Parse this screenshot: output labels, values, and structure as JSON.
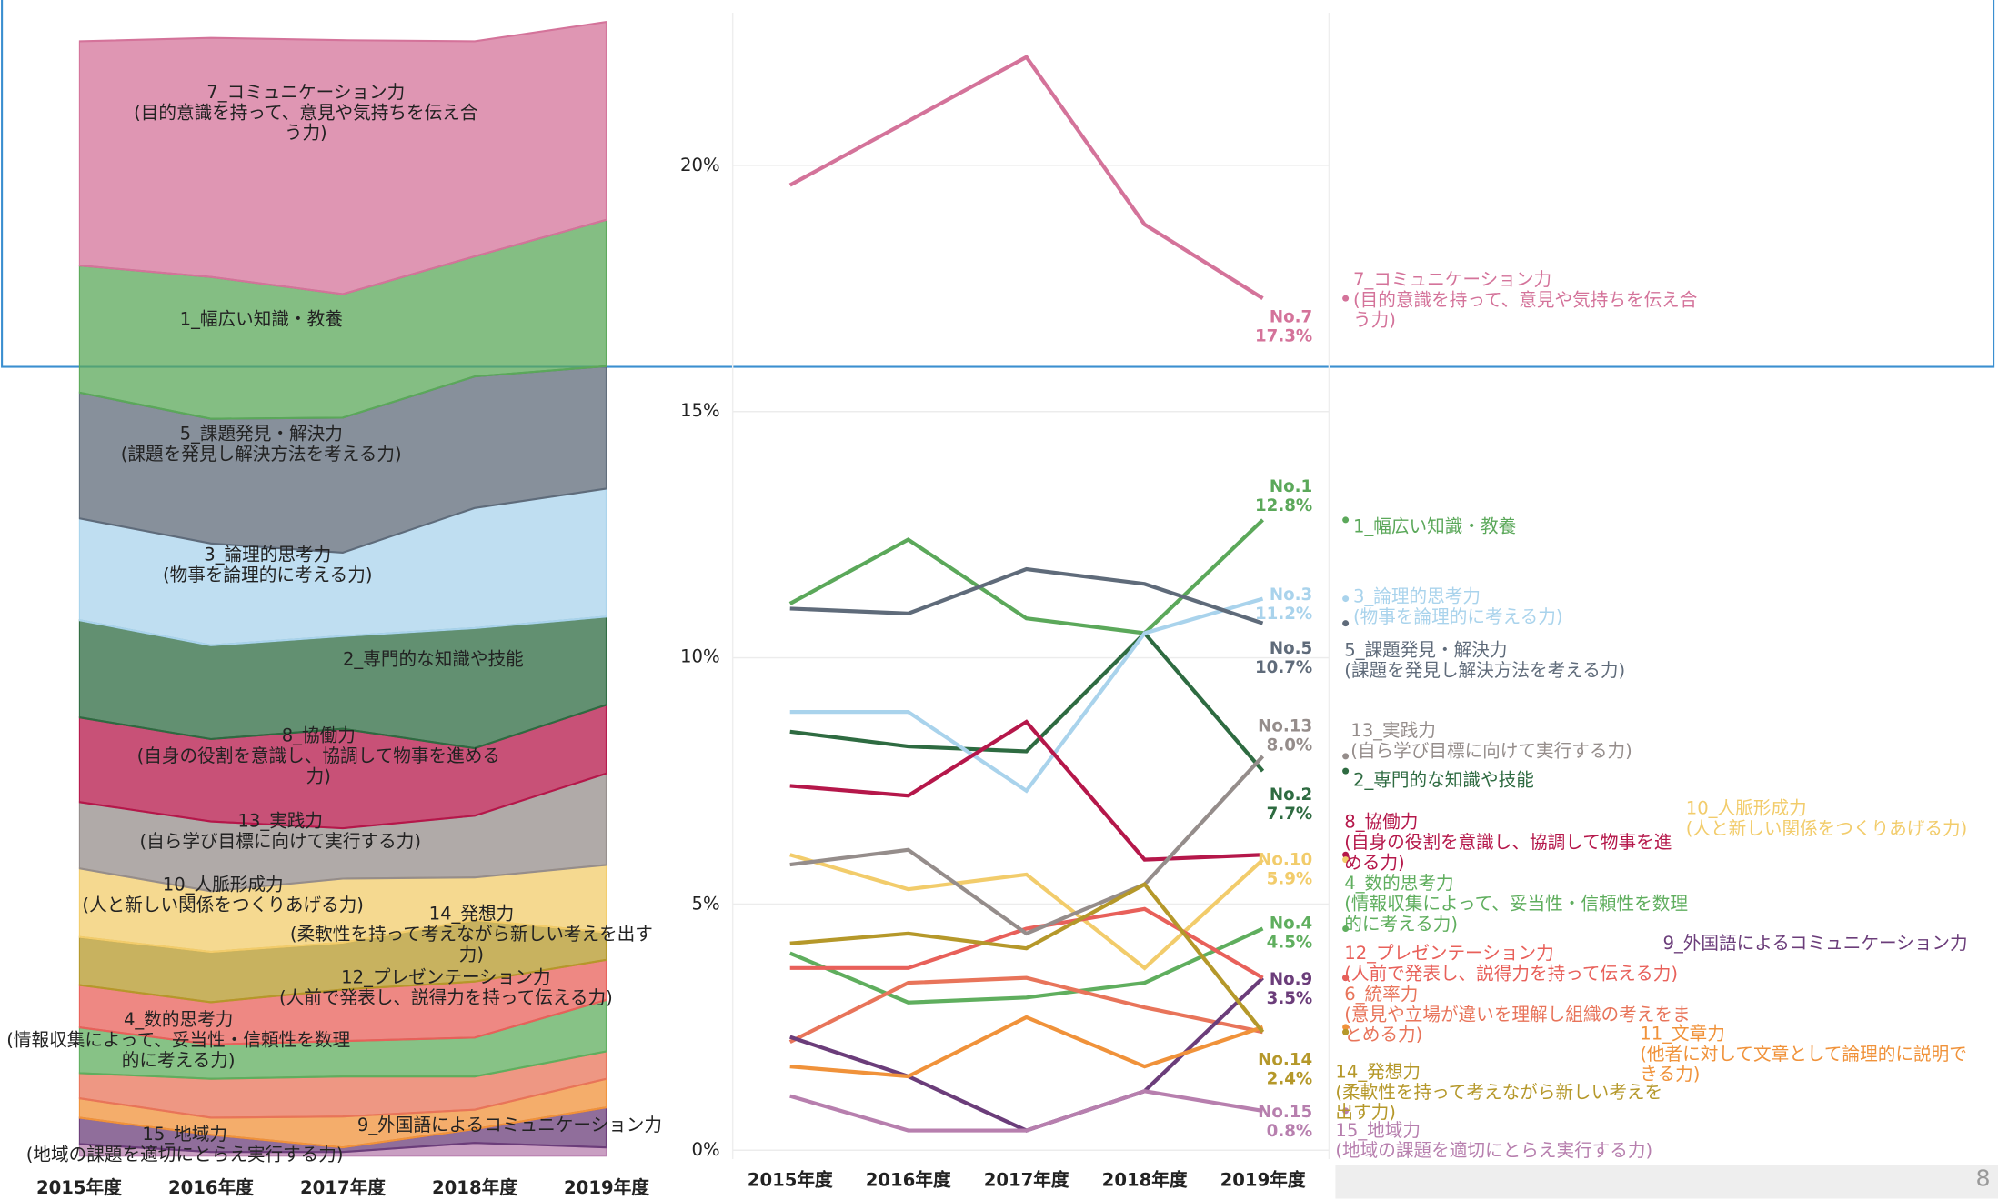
{
  "chart_data": {
    "type": "line",
    "categories": [
      "2015年度",
      "2016年度",
      "2017年度",
      "2018年度",
      "2019年度"
    ],
    "ylim": [
      0,
      23.1
    ],
    "yticks": [
      {
        "value": 0,
        "label": "0%"
      },
      {
        "value": 5,
        "label": "5%"
      },
      {
        "value": 10,
        "label": "10%"
      },
      {
        "value": 15,
        "label": "15%"
      },
      {
        "value": 20,
        "label": "20%"
      }
    ],
    "grid": true,
    "area_ylim": [
      0,
      100
    ],
    "series": [
      {
        "name": "1_幅広い知識・教養",
        "color": "#5ba85a",
        "values": [
          11.1,
          12.4,
          10.8,
          10.5,
          12.8
        ],
        "id": "No.1",
        "end_label": "12.8%"
      },
      {
        "name": "2_専門的な知識や技能",
        "color": "#2e6b41",
        "values": [
          8.5,
          8.2,
          8.1,
          10.5,
          7.7
        ],
        "id": "No.2",
        "end_label": "7.7%"
      },
      {
        "name": "3_論理的思考力\n(物事を論理的に考える力)",
        "color": "#a9d3ec",
        "values": [
          8.9,
          8.9,
          7.3,
          10.5,
          11.2
        ],
        "id": "No.3",
        "end_label": "11.2%"
      },
      {
        "name": "4_数的思考力\n(情報収集によって、妥当性・信頼性を数理的に考える力)",
        "color": "#5fae5e",
        "values": [
          4.0,
          3.0,
          3.1,
          3.4,
          4.5
        ],
        "id": "No.4",
        "end_label": "4.5%"
      },
      {
        "name": "5_課題発見・解決力\n(課題を発見し解決方法を考える力)",
        "color": "#5f6b7a",
        "values": [
          11.0,
          10.9,
          11.8,
          11.5,
          10.7
        ],
        "id": "No.5",
        "end_label": "10.7%"
      },
      {
        "name": "6_統率力\n(意見や立場が違いを理解し組織の考えをまとめる力)",
        "color": "#e8745a",
        "values": [
          2.2,
          3.4,
          3.5,
          2.9,
          2.4
        ]
      },
      {
        "name": "7_コミュニケーション力\n(目的意識を持って、意見や気持ちを伝え合う力)",
        "color": "#d4739a",
        "values": [
          19.6,
          20.9,
          22.2,
          18.8,
          17.3
        ],
        "id": "No.7",
        "end_label": "17.3%"
      },
      {
        "name": "8_協働力\n(自身の役割を意識し、協調して物事を進める力)",
        "color": "#b5174a",
        "values": [
          7.4,
          7.2,
          8.7,
          5.9,
          6.0
        ]
      },
      {
        "name": "9_外国語によるコミュニケーション力",
        "color": "#6b3d7a",
        "values": [
          2.3,
          1.5,
          0.4,
          1.2,
          3.5
        ],
        "id": "No.9",
        "end_label": "3.5%"
      },
      {
        "name": "10_人脈形成力\n(人と新しい関係をつくりあげる力)",
        "color": "#f2cc6b",
        "values": [
          6.0,
          5.3,
          5.6,
          3.7,
          5.9
        ],
        "id": "No.10",
        "end_label": "5.9%"
      },
      {
        "name": "11_文章力\n(他者に対して文章として論理的に説明できる力)",
        "color": "#f0923a",
        "values": [
          1.7,
          1.5,
          2.7,
          1.7,
          2.5
        ]
      },
      {
        "name": "12_プレゼンテーション力\n(人前で発表し、説得力を持って伝える力)",
        "color": "#e8605a",
        "values": [
          3.7,
          3.7,
          4.5,
          4.9,
          3.5
        ]
      },
      {
        "name": "13_実践力\n(自ら学び目標に向けて実行する力)",
        "color": "#958d8b",
        "values": [
          5.8,
          6.1,
          4.4,
          5.4,
          8.0
        ],
        "id": "No.13",
        "end_label": "8.0%"
      },
      {
        "name": "14_発想力\n(柔軟性を持って考えながら新しい考えを出す力)",
        "color": "#b5982a",
        "values": [
          4.2,
          4.4,
          4.1,
          5.4,
          2.4
        ],
        "id": "No.14",
        "end_label": "2.4%"
      },
      {
        "name": "15_地域力\n(地域の課題を適切にとらえ実行する力)",
        "color": "#b77fae",
        "values": [
          1.1,
          0.4,
          0.4,
          1.2,
          0.8
        ],
        "id": "No.15",
        "end_label": "0.8%"
      }
    ],
    "page_number": "8"
  }
}
